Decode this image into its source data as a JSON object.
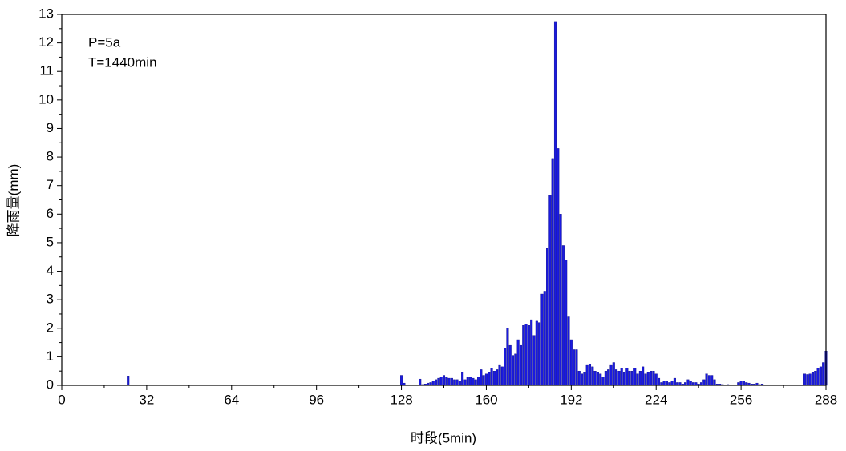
{
  "chart_data": {
    "type": "bar",
    "annotations": [
      "P=5a",
      "T=1440min"
    ],
    "xlabel": "时段(5min)",
    "ylabel": "降雨量(mm)",
    "color": "#1a1ae0",
    "x": [
      1,
      2,
      3,
      4,
      5,
      6,
      7,
      8,
      9,
      10,
      11,
      12,
      13,
      14,
      15,
      16,
      17,
      18,
      19,
      20,
      21,
      22,
      23,
      24,
      25,
      26,
      27,
      28,
      29,
      30,
      31,
      32,
      33,
      34,
      35,
      36,
      37,
      38,
      39,
      40,
      41,
      42,
      43,
      44,
      45,
      46,
      47,
      48,
      49,
      50,
      51,
      52,
      53,
      54,
      55,
      56,
      57,
      58,
      59,
      60,
      61,
      62,
      63,
      64,
      65,
      66,
      67,
      68,
      69,
      70,
      71,
      72,
      73,
      74,
      75,
      76,
      77,
      78,
      79,
      80,
      81,
      82,
      83,
      84,
      85,
      86,
      87,
      88,
      89,
      90,
      91,
      92,
      93,
      94,
      95,
      96,
      97,
      98,
      99,
      100,
      101,
      102,
      103,
      104,
      105,
      106,
      107,
      108,
      109,
      110,
      111,
      112,
      113,
      114,
      115,
      116,
      117,
      118,
      119,
      120,
      121,
      122,
      123,
      124,
      125,
      126,
      127,
      128,
      129,
      130,
      131,
      132,
      133,
      134,
      135,
      136,
      137,
      138,
      139,
      140,
      141,
      142,
      143,
      144,
      145,
      146,
      147,
      148,
      149,
      150,
      151,
      152,
      153,
      154,
      155,
      156,
      157,
      158,
      159,
      160,
      161,
      162,
      163,
      164,
      165,
      166,
      167,
      168,
      169,
      170,
      171,
      172,
      173,
      174,
      175,
      176,
      177,
      178,
      179,
      180,
      181,
      182,
      183,
      184,
      185,
      186,
      187,
      188,
      189,
      190,
      191,
      192,
      193,
      194,
      195,
      196,
      197,
      198,
      199,
      200,
      201,
      202,
      203,
      204,
      205,
      206,
      207,
      208,
      209,
      210,
      211,
      212,
      213,
      214,
      215,
      216,
      217,
      218,
      219,
      220,
      221,
      222,
      223,
      224,
      225,
      226,
      227,
      228,
      229,
      230,
      231,
      232,
      233,
      234,
      235,
      236,
      237,
      238,
      239,
      240,
      241,
      242,
      243,
      244,
      245,
      246,
      247,
      248,
      249,
      250,
      251,
      252,
      253,
      254,
      255,
      256,
      257,
      258,
      259,
      260,
      261,
      262,
      263,
      264,
      265,
      266,
      267,
      268,
      269,
      270,
      271,
      272,
      273,
      274,
      275,
      276,
      277,
      278,
      279,
      280,
      281,
      282,
      283,
      284,
      285,
      286,
      287,
      288
    ],
    "values": [
      0,
      0,
      0,
      0,
      0,
      0,
      0,
      0,
      0,
      0,
      0,
      0,
      0,
      0,
      0,
      0,
      0,
      0,
      0,
      0,
      0,
      0,
      0,
      0,
      0.33,
      0,
      0,
      0,
      0,
      0,
      0,
      0,
      0,
      0,
      0,
      0,
      0,
      0,
      0,
      0,
      0,
      0,
      0,
      0,
      0,
      0,
      0,
      0,
      0,
      0,
      0,
      0,
      0,
      0,
      0,
      0,
      0,
      0,
      0,
      0,
      0,
      0,
      0,
      0,
      0,
      0,
      0,
      0,
      0,
      0,
      0,
      0,
      0,
      0,
      0,
      0,
      0,
      0,
      0,
      0,
      0,
      0,
      0,
      0,
      0,
      0,
      0,
      0,
      0,
      0,
      0,
      0,
      0,
      0,
      0,
      0,
      0,
      0,
      0,
      0,
      0,
      0,
      0,
      0,
      0,
      0,
      0,
      0,
      0,
      0,
      0,
      0,
      0,
      0,
      0,
      0,
      0,
      0,
      0,
      0,
      0,
      0,
      0,
      0,
      0,
      0,
      0,
      0.35,
      0.08,
      0,
      0,
      0,
      0,
      0,
      0.22,
      0.03,
      0.05,
      0.08,
      0.1,
      0.15,
      0.2,
      0.25,
      0.3,
      0.35,
      0.3,
      0.25,
      0.25,
      0.2,
      0.2,
      0.15,
      0.45,
      0.2,
      0.3,
      0.3,
      0.25,
      0.2,
      0.3,
      0.55,
      0.35,
      0.4,
      0.45,
      0.6,
      0.5,
      0.55,
      0.7,
      0.65,
      1.3,
      2.0,
      1.4,
      1.05,
      1.1,
      1.6,
      1.4,
      2.1,
      2.15,
      2.1,
      2.3,
      1.75,
      2.25,
      2.2,
      3.2,
      3.3,
      4.8,
      6.65,
      7.95,
      12.75,
      8.3,
      6.0,
      4.9,
      4.4,
      2.4,
      1.6,
      1.25,
      1.25,
      0.5,
      0.4,
      0.45,
      0.7,
      0.75,
      0.65,
      0.5,
      0.45,
      0.4,
      0.3,
      0.5,
      0.55,
      0.7,
      0.8,
      0.55,
      0.5,
      0.6,
      0.45,
      0.6,
      0.5,
      0.5,
      0.6,
      0.4,
      0.5,
      0.65,
      0.4,
      0.45,
      0.5,
      0.5,
      0.4,
      0.25,
      0.1,
      0.15,
      0.15,
      0.1,
      0.15,
      0.25,
      0.1,
      0.1,
      0.05,
      0.1,
      0.2,
      0.15,
      0.1,
      0.1,
      0.05,
      0.1,
      0.2,
      0.4,
      0.35,
      0.35,
      0.2,
      0.05,
      0.05,
      0.03,
      0.02,
      0.03,
      0.02,
      0.01,
      0,
      0.1,
      0.15,
      0.15,
      0.1,
      0.08,
      0.05,
      0.05,
      0.08,
      0.03,
      0.05,
      0.02,
      0,
      0,
      0,
      0,
      0,
      0,
      0,
      0,
      0,
      0,
      0,
      0,
      0,
      0,
      0.4,
      0.38,
      0.4,
      0.45,
      0.5,
      0.6,
      0.65,
      0.8,
      1.2
    ],
    "xlim": [
      0,
      288
    ],
    "xticks": [
      0,
      32,
      64,
      96,
      128,
      160,
      192,
      224,
      256,
      288
    ],
    "ylim": [
      0,
      13
    ],
    "yticks": [
      0,
      1,
      2,
      3,
      4,
      5,
      6,
      7,
      8,
      9,
      10,
      11,
      12,
      13
    ],
    "grid": false
  }
}
